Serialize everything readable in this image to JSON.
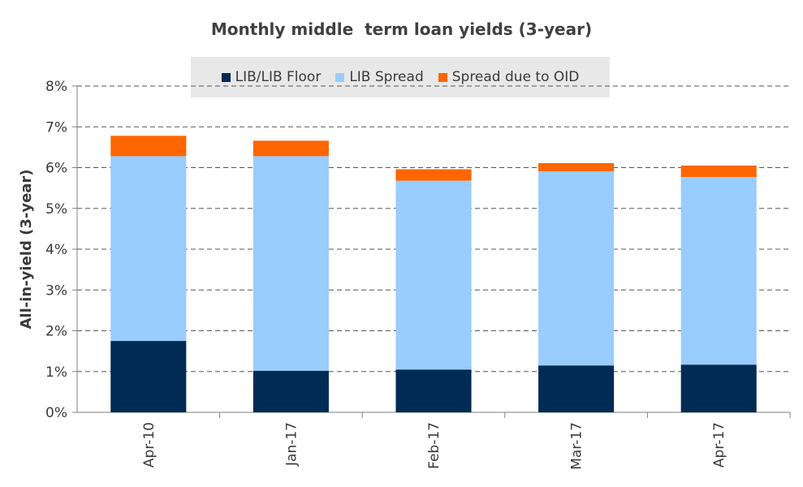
{
  "chart_data": {
    "type": "bar",
    "stacked": true,
    "title": "Monthly middle  term loan yields (3-year)",
    "ylabel": "All-in-yield (3-year)",
    "xlabel": "",
    "categories": [
      "Apr-10",
      "Jan-17",
      "Feb-17",
      "Mar-17",
      "Apr-17"
    ],
    "ylim": [
      0,
      8
    ],
    "yticks": [
      "0%",
      "1%",
      "2%",
      "3%",
      "4%",
      "5%",
      "6%",
      "7%",
      "8%"
    ],
    "grid": true,
    "legend_position": "top",
    "series": [
      {
        "name": "LIB/LIB Floor",
        "color": "#002b54",
        "values": [
          1.75,
          1.02,
          1.05,
          1.15,
          1.17
        ]
      },
      {
        "name": "LIB Spread",
        "color": "#99ccff",
        "values": [
          4.53,
          5.26,
          4.63,
          4.76,
          4.6
        ]
      },
      {
        "name": "Spread due to OID",
        "color": "#ff6600",
        "values": [
          0.5,
          0.38,
          0.28,
          0.2,
          0.28
        ]
      }
    ]
  }
}
